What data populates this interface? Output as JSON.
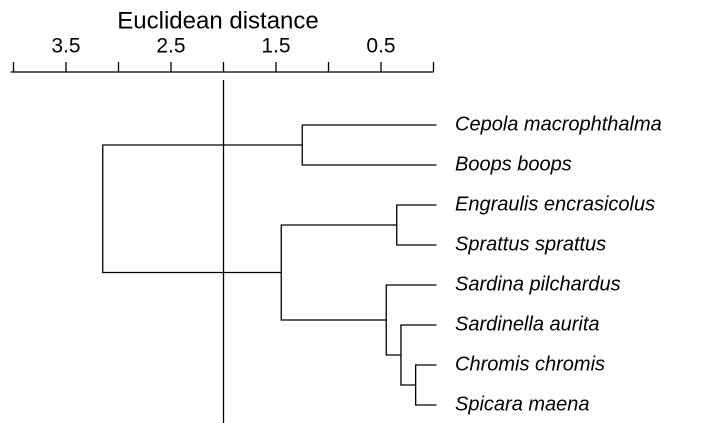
{
  "chart_data": {
    "type": "dendrogram",
    "xlabel": "Euclidean distance",
    "xlim": [
      4,
      0
    ],
    "xticks": [
      3.5,
      2.5,
      1.5,
      0.5
    ],
    "xminorticks": [
      4,
      3,
      2,
      1,
      0
    ],
    "cut": 2,
    "color": "#000000",
    "leaves": [
      "Cepola macrophthalma",
      "Boops boops",
      "Engraulis encrasicolus",
      "Sprattus sprattus",
      "Sardina pilchardus",
      "Sardinella aurita",
      "Chromis chromis",
      "Spicara maena"
    ],
    "merges": [
      {
        "children": [
          6,
          7
        ],
        "height": 0.17
      },
      {
        "children": [
          5,
          8
        ],
        "height": 0.31
      },
      {
        "children": [
          4,
          9
        ],
        "height": 0.45
      },
      {
        "children": [
          2,
          3
        ],
        "height": 0.35
      },
      {
        "children": [
          0,
          1
        ],
        "height": 1.25
      },
      {
        "children": [
          11,
          10
        ],
        "height": 1.45
      },
      {
        "children": [
          12,
          13
        ],
        "height": 3.15
      }
    ]
  }
}
